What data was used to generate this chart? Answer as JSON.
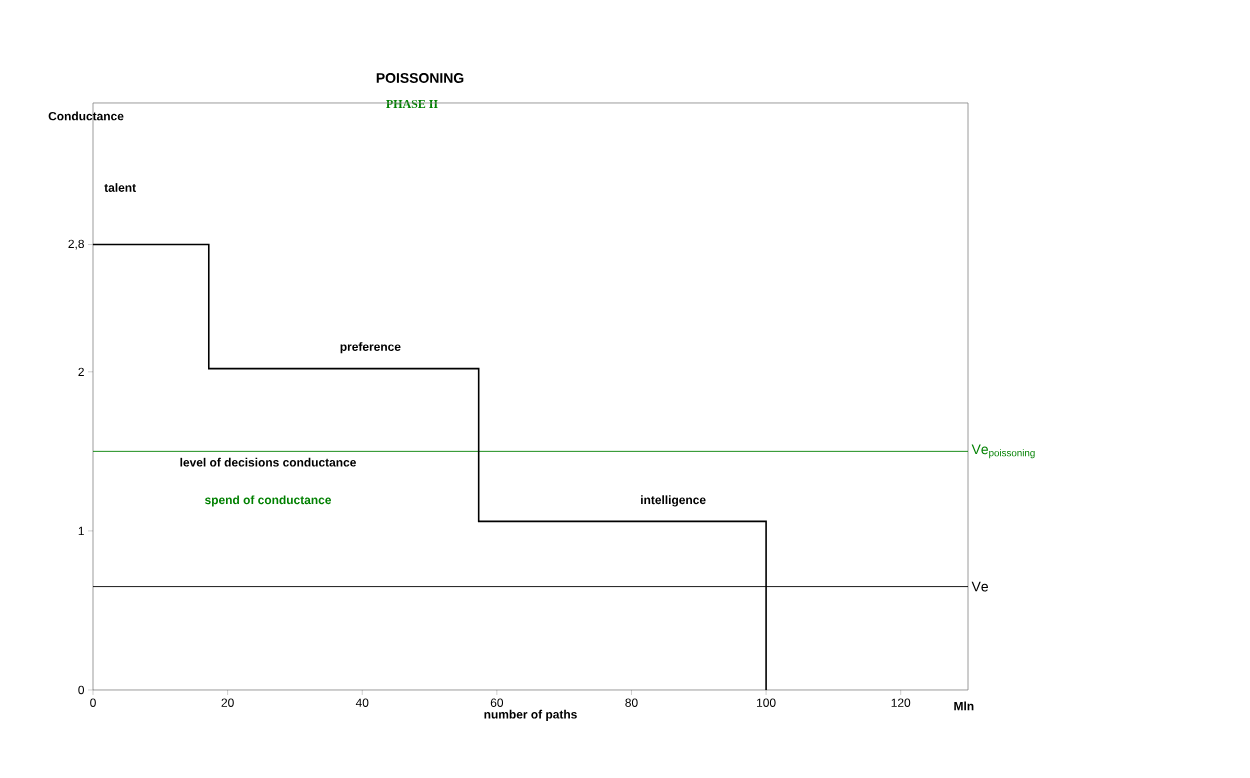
{
  "chart_data": {
    "type": "step",
    "title": "POISSONING",
    "subtitle": "PHASE II",
    "xlabel": "number of paths",
    "ylabel": "Conductance",
    "x": [
      0,
      17.2,
      57.3,
      100
    ],
    "values": [
      2.8,
      2.02,
      1.06,
      0
    ],
    "color": "#000000",
    "xlim": [
      0,
      130
    ],
    "ylim": [
      0,
      3.69
    ],
    "xticks": [
      0,
      20,
      40,
      60,
      80,
      100,
      120
    ],
    "yticks": [
      0,
      1,
      2,
      {
        "value": 2.8,
        "label": "2,8"
      }
    ],
    "ref_lines": [
      {
        "axis": "y",
        "value": 1.5,
        "label": "\\mathrm{Ve}_{\\mathrm{poissoning}}",
        "color": "#008000"
      },
      {
        "axis": "y",
        "value": 0.65,
        "label": "\\mathrm{Ve}",
        "color": "#000000"
      }
    ],
    "annotations": [
      "talent",
      "preference",
      "intelligence",
      "level of decisions conductance",
      "spend of conductance",
      "Mln"
    ],
    "grid": false
  }
}
